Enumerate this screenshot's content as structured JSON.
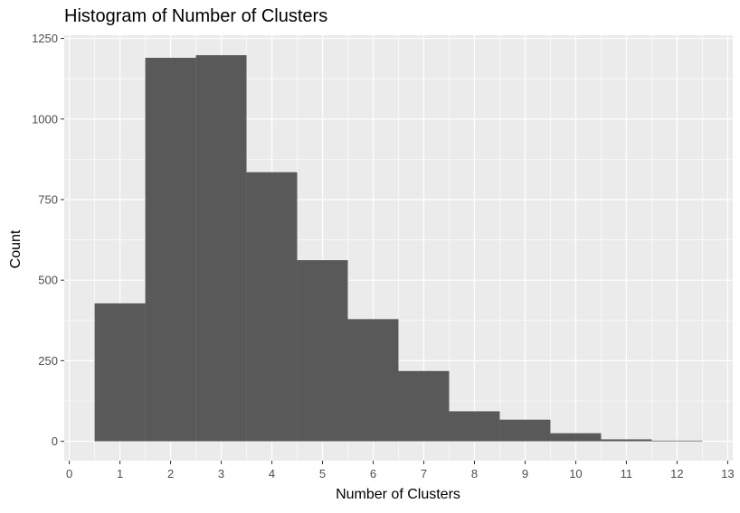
{
  "chart_data": {
    "type": "bar",
    "title": "Histogram of Number of Clusters",
    "xlabel": "Number of Clusters",
    "ylabel": "Count",
    "bins": [
      {
        "center": 1,
        "value": 428
      },
      {
        "center": 2,
        "value": 1190
      },
      {
        "center": 3,
        "value": 1198
      },
      {
        "center": 4,
        "value": 835
      },
      {
        "center": 5,
        "value": 562
      },
      {
        "center": 6,
        "value": 379
      },
      {
        "center": 7,
        "value": 218
      },
      {
        "center": 8,
        "value": 93
      },
      {
        "center": 9,
        "value": 67
      },
      {
        "center": 10,
        "value": 25
      },
      {
        "center": 11,
        "value": 6
      },
      {
        "center": 12,
        "value": 2
      }
    ],
    "bin_width": 1,
    "xlim": [
      -0.1,
      13.1
    ],
    "ylim": [
      -60,
      1260
    ],
    "x_ticks": [
      "0",
      "1",
      "2",
      "3",
      "4",
      "5",
      "6",
      "7",
      "8",
      "9",
      "10",
      "11",
      "12",
      "13"
    ],
    "y_ticks": [
      "0",
      "250",
      "500",
      "750",
      "1000",
      "1250"
    ],
    "grid": true,
    "colors": {
      "panel_background": "#ebebeb",
      "grid_major": "#ffffff",
      "bar_fill": "#595959",
      "tick_label": "#4d4d4d",
      "tick_mark": "#333333"
    }
  }
}
